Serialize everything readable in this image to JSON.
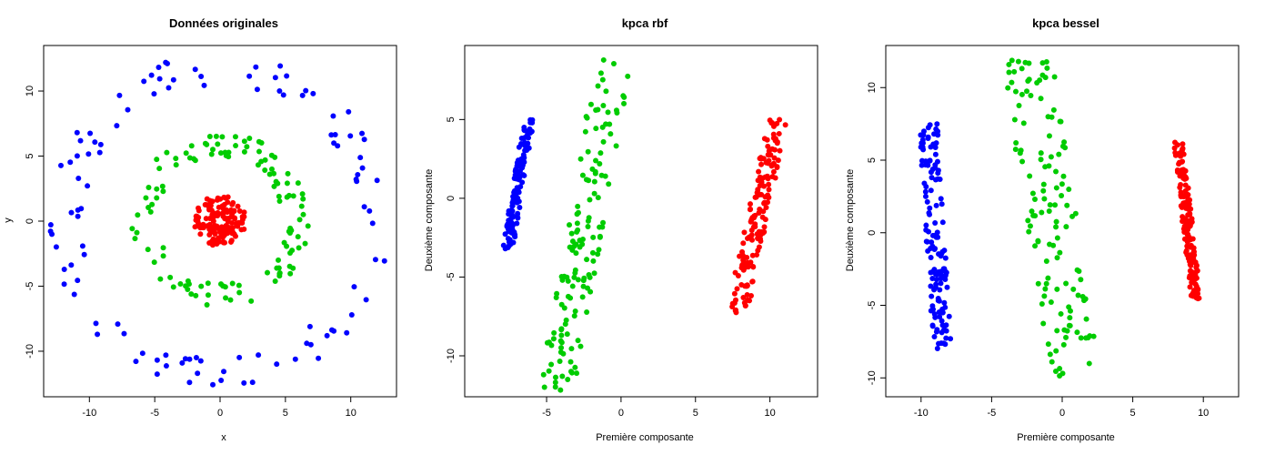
{
  "chart_data": [
    {
      "type": "scatter",
      "title": "Données originales",
      "xlabel": "x",
      "ylabel": "y",
      "xlim": [
        -13.5,
        13.5
      ],
      "ylim": [
        -13.5,
        13.5
      ],
      "xticks": [
        -10,
        -5,
        0,
        5,
        10
      ],
      "yticks": [
        -10,
        -5,
        0,
        5,
        10
      ],
      "series": [
        {
          "color": "#0000ff",
          "shape": "ring",
          "center": [
            0,
            0
          ],
          "r_min": 10.5,
          "r_max": 13.0,
          "n": 110
        },
        {
          "color": "#00cc00",
          "shape": "ring",
          "center": [
            0,
            0
          ],
          "r_min": 4.8,
          "r_max": 6.8,
          "n": 120
        },
        {
          "color": "#ff0000",
          "shape": "ring",
          "center": [
            0,
            0
          ],
          "r_min": 0.4,
          "r_max": 2.0,
          "n": 140
        }
      ]
    },
    {
      "type": "scatter",
      "title": "kpca rbf",
      "xlabel": "Première composante",
      "ylabel": "Deuxième composante",
      "xlim": [
        -10.5,
        13.2
      ],
      "ylim": [
        -12.6,
        9.7
      ],
      "xticks": [
        -5,
        0,
        5,
        10
      ],
      "yticks": [
        -10,
        -5,
        0,
        5
      ],
      "series": [
        {
          "color": "#0000ff",
          "shape": "band",
          "y_range": [
            -3.2,
            5.0
          ],
          "x_at_bottom": -7.6,
          "x_at_top": -6.2,
          "x_spread": 0.7,
          "n": 120
        },
        {
          "color": "#00cc00",
          "shape": "band",
          "y_range": [
            -12.2,
            8.8
          ],
          "x_at_bottom": -4.3,
          "x_at_top": -0.5,
          "x_spread": 2.4,
          "n": 140
        },
        {
          "color": "#ff0000",
          "shape": "band",
          "y_range": [
            -7.3,
            5.0
          ],
          "x_at_bottom": 7.8,
          "x_at_top": 10.5,
          "x_spread": 1.4,
          "n": 150
        }
      ]
    },
    {
      "type": "scatter",
      "title": "kpca bessel",
      "xlabel": "Première composante",
      "ylabel": "Deuxième composante",
      "xlim": [
        -12.5,
        12.5
      ],
      "ylim": [
        -11.3,
        12.9
      ],
      "xticks": [
        -10,
        -5,
        0,
        5,
        10
      ],
      "yticks": [
        -10,
        -5,
        0,
        5,
        10
      ],
      "series": [
        {
          "color": "#0000ff",
          "shape": "band",
          "y_range": [
            -8.0,
            7.5
          ],
          "x_at_bottom": -8.5,
          "x_at_top": -9.5,
          "x_spread": 1.3,
          "n": 140
        },
        {
          "color": "#00cc00",
          "shape": "band",
          "y_range": [
            -10.7,
            12.2
          ],
          "x_at_bottom": 1.0,
          "x_at_top": -2.5,
          "x_spread": 3.6,
          "n": 130
        },
        {
          "color": "#ff0000",
          "shape": "band",
          "y_range": [
            -4.6,
            6.3
          ],
          "x_at_bottom": 9.5,
          "x_at_top": 8.2,
          "x_spread": 0.7,
          "n": 150
        }
      ]
    }
  ]
}
